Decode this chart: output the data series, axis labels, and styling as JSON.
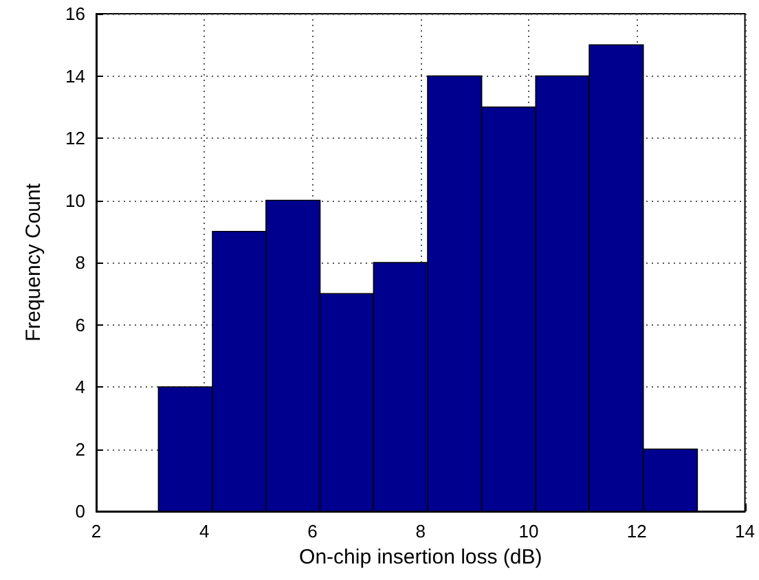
{
  "chart_data": {
    "type": "histogram",
    "xlabel": "On-chip insertion loss (dB)",
    "ylabel": "Frequency Count",
    "bins": [
      3.15,
      4.15,
      5.14,
      6.14,
      7.13,
      8.13,
      9.13,
      10.13,
      11.12,
      12.12,
      13.12
    ],
    "values": [
      4,
      9,
      10,
      7,
      8,
      14,
      13,
      14,
      15,
      2
    ],
    "color": "#00008f",
    "xlim": [
      2,
      14
    ],
    "xticks": [
      2,
      4,
      6,
      8,
      10,
      12,
      14
    ],
    "ylim": [
      0,
      16
    ],
    "yticks": [
      0,
      2,
      4,
      6,
      8,
      10,
      12,
      14,
      16
    ],
    "grid": true
  }
}
